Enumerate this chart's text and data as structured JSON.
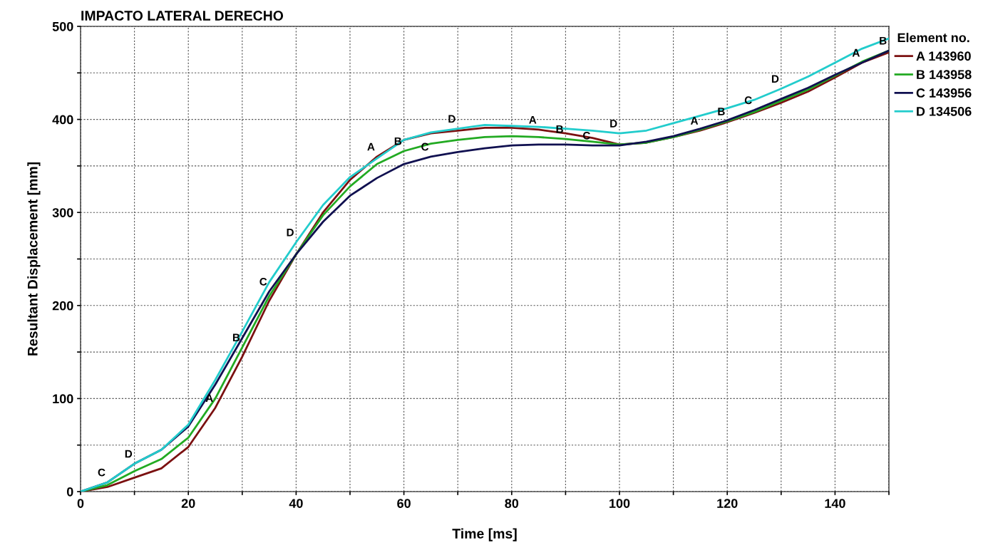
{
  "chart_data": {
    "type": "line",
    "title": "IMPACTO LATERAL DERECHO",
    "xlabel": "Time [ms]",
    "ylabel": "Resultant Displacement [mm]",
    "legend_title": "Element no.",
    "legend": "right",
    "grid": true,
    "line_style": "solid",
    "marker": "none",
    "x": [
      0,
      5,
      10,
      15,
      20,
      25,
      30,
      35,
      40,
      45,
      50,
      55,
      60,
      65,
      70,
      75,
      80,
      85,
      90,
      95,
      100,
      105,
      110,
      115,
      120,
      125,
      130,
      135,
      140,
      145,
      150
    ],
    "xlim": [
      0,
      150
    ],
    "ylim": [
      0,
      500
    ],
    "xticks": [
      0,
      {
        "value": 10,
        "label": null
      },
      20,
      {
        "value": 30,
        "label": null
      },
      40,
      {
        "value": 50,
        "label": null
      },
      60,
      {
        "value": 70,
        "label": null
      },
      80,
      {
        "value": 90,
        "label": null
      },
      100,
      {
        "value": 110,
        "label": null
      },
      120,
      {
        "value": 130,
        "label": null
      },
      140,
      {
        "value": 150,
        "label": null
      }
    ],
    "yticks": [
      0,
      {
        "value": 50,
        "label": null
      },
      100,
      {
        "value": 150,
        "label": null
      },
      200,
      {
        "value": 250,
        "label": null
      },
      300,
      {
        "value": 350,
        "label": null
      },
      400,
      {
        "value": 450,
        "label": null
      },
      500
    ],
    "series": [
      {
        "name": "A 143960",
        "color": "#7b1010",
        "values": [
          0,
          5,
          15,
          25,
          48,
          90,
          145,
          205,
          255,
          300,
          335,
          360,
          378,
          385,
          388,
          391,
          391,
          389,
          385,
          380,
          373,
          375,
          381,
          388,
          397,
          407,
          418,
          430,
          445,
          461,
          472
        ]
      },
      {
        "name": "B 143958",
        "color": "#22aa22",
        "values": [
          0,
          7,
          22,
          35,
          58,
          100,
          155,
          210,
          255,
          297,
          328,
          352,
          366,
          374,
          378,
          381,
          382,
          381,
          379,
          376,
          373,
          375,
          381,
          389,
          398,
          408,
          420,
          432,
          447,
          462,
          474
        ]
      },
      {
        "name": "C 143956",
        "color": "#101050",
        "values": [
          0,
          10,
          30,
          45,
          70,
          115,
          165,
          215,
          255,
          290,
          318,
          337,
          352,
          360,
          365,
          369,
          372,
          373,
          373,
          372,
          372,
          376,
          382,
          390,
          399,
          410,
          422,
          434,
          448,
          461,
          474
        ]
      },
      {
        "name": "D 134506",
        "color": "#22cccc",
        "values": [
          0,
          10,
          30,
          45,
          72,
          120,
          172,
          225,
          268,
          308,
          338,
          358,
          378,
          386,
          390,
          394,
          393,
          392,
          390,
          388,
          385,
          388,
          396,
          404,
          412,
          421,
          433,
          446,
          461,
          476,
          487
        ]
      }
    ],
    "annotations": [
      {
        "text": "C",
        "x": 5,
        "y": 10
      },
      {
        "text": "D",
        "x": 10,
        "y": 30
      },
      {
        "text": "A",
        "x": 25,
        "y": 90
      },
      {
        "text": "B",
        "x": 30,
        "y": 155
      },
      {
        "text": "C",
        "x": 35,
        "y": 215
      },
      {
        "text": "D",
        "x": 40,
        "y": 268
      },
      {
        "text": "A",
        "x": 55,
        "y": 360
      },
      {
        "text": "B",
        "x": 60,
        "y": 366
      },
      {
        "text": "C",
        "x": 65,
        "y": 360
      },
      {
        "text": "D",
        "x": 70,
        "y": 390
      },
      {
        "text": "A",
        "x": 85,
        "y": 389
      },
      {
        "text": "B",
        "x": 90,
        "y": 379
      },
      {
        "text": "C",
        "x": 95,
        "y": 372
      },
      {
        "text": "D",
        "x": 100,
        "y": 385
      },
      {
        "text": "A",
        "x": 115,
        "y": 388
      },
      {
        "text": "B",
        "x": 120,
        "y": 398
      },
      {
        "text": "C",
        "x": 125,
        "y": 410
      },
      {
        "text": "D",
        "x": 130,
        "y": 433
      },
      {
        "text": "A",
        "x": 145,
        "y": 461
      },
      {
        "text": "B",
        "x": 150,
        "y": 474
      }
    ]
  }
}
